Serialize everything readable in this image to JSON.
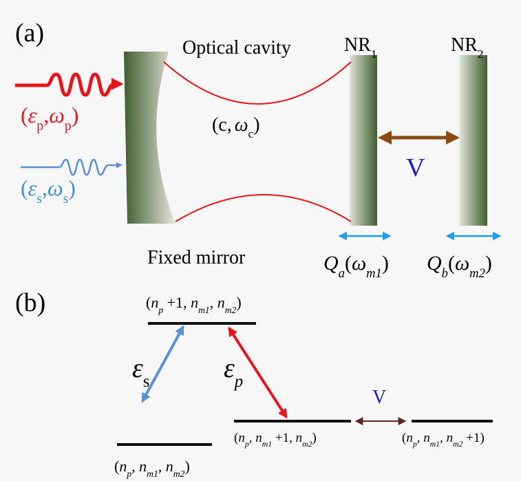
{
  "panel_a": {
    "label": "(a)",
    "cavity": "Optical cavity",
    "mirror": "Fixed mirror",
    "nr1": [
      "NR",
      "1"
    ],
    "nr2": [
      "NR",
      "2"
    ],
    "probe": [
      "(",
      "ε",
      "p",
      ",",
      "ω",
      "p",
      ")"
    ],
    "signal": [
      "(",
      "ε",
      "s",
      ",",
      "ω",
      "s",
      ")"
    ],
    "mode": [
      "(c,",
      "ω",
      "c",
      ")"
    ],
    "coupling": "V",
    "qa": [
      "Q",
      "a",
      "(",
      "ω",
      "m1",
      ")"
    ],
    "qb": [
      "Q",
      "b",
      "(",
      "ω",
      "m2",
      ")"
    ]
  },
  "panel_b": {
    "label": "(b)",
    "top": [
      "(",
      "n",
      "p",
      " +1, ",
      "n",
      "m1",
      ", ",
      "n",
      "m2",
      ")"
    ],
    "middle": [
      "(",
      "n",
      "p",
      ", ",
      "n",
      "m1",
      " +1, ",
      "n",
      "m2",
      ")"
    ],
    "right": [
      "(",
      "n",
      "p",
      ", ",
      "n",
      "m1",
      ", ",
      "n",
      "m2",
      " +1)"
    ],
    "bottom": [
      "(",
      "n",
      "p",
      ", ",
      "n",
      "m1",
      ", ",
      "n",
      "m2",
      ")"
    ],
    "eps_s": [
      "ε",
      "s"
    ],
    "eps_p": [
      "ε",
      "p"
    ],
    "coupling": "V"
  }
}
